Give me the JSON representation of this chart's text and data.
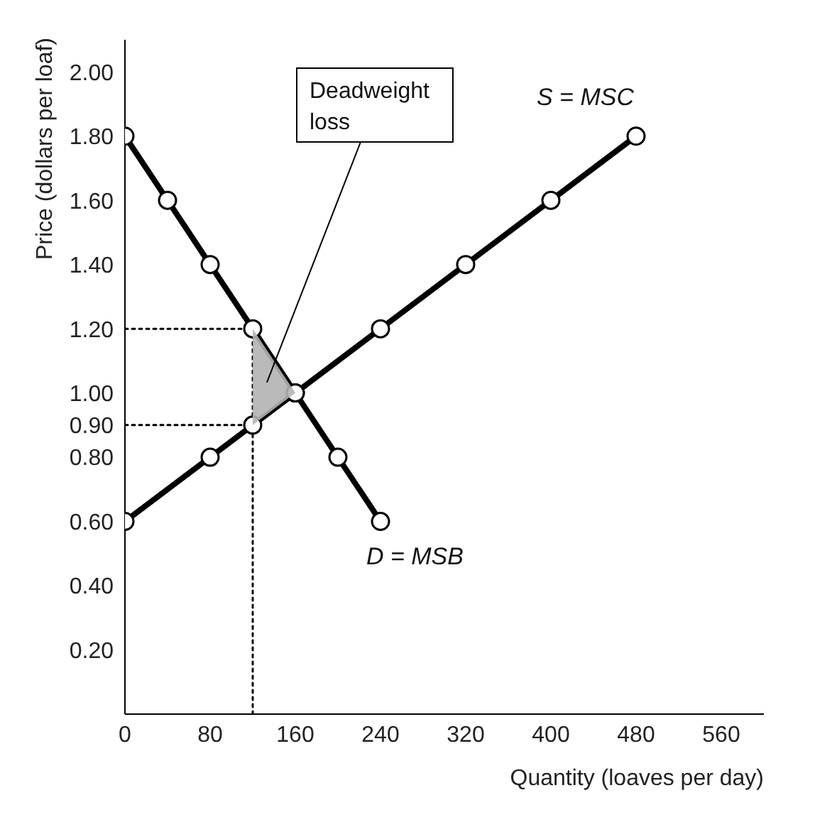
{
  "chart_data": {
    "type": "line",
    "xlabel": "Quantity (loaves per day)",
    "ylabel": "Price (dollars per loaf)",
    "xlim": [
      0,
      600
    ],
    "xticks": [
      0,
      80,
      160,
      240,
      320,
      400,
      480,
      560
    ],
    "ylim": [
      0,
      2.1
    ],
    "yticks": [
      {
        "value": 0.2,
        "label": "0.20"
      },
      {
        "value": 0.4,
        "label": "0.40"
      },
      {
        "value": 0.6,
        "label": "0.60"
      },
      {
        "value": 0.8,
        "label": "0.80"
      },
      {
        "value": 0.9,
        "label": "0.90"
      },
      {
        "value": 1.0,
        "label": "1.00"
      },
      {
        "value": 1.2,
        "label": "1.20"
      },
      {
        "value": 1.4,
        "label": "1.40"
      },
      {
        "value": 1.6,
        "label": "1.60"
      },
      {
        "value": 1.8,
        "label": "1.80"
      },
      {
        "value": 2.0,
        "label": "2.00"
      }
    ],
    "series": [
      {
        "color": "#000000",
        "line_style": "dotted",
        "x": [
          0,
          120
        ],
        "values": [
          1.2,
          1.2
        ]
      },
      {
        "color": "#000000",
        "line_style": "dotted",
        "x": [
          0,
          120
        ],
        "values": [
          0.9,
          0.9
        ]
      },
      {
        "color": "#000000",
        "line_style": "dotted",
        "x": [
          120,
          120
        ],
        "values": [
          0,
          1.2
        ]
      },
      {
        "name": "S = MSC",
        "color": "#000000",
        "line_style": "solid",
        "marker": "circle",
        "x": [
          0,
          80,
          120,
          160,
          240,
          320,
          400,
          480
        ],
        "values": [
          0.6,
          0.8,
          0.9,
          1.0,
          1.2,
          1.4,
          1.6,
          1.8
        ]
      },
      {
        "name": "D = MSB",
        "color": "#000000",
        "line_style": "solid",
        "marker": "circle",
        "x": [
          0,
          40,
          80,
          120,
          160,
          200,
          240
        ],
        "values": [
          1.8,
          1.6,
          1.4,
          1.2,
          1.0,
          0.8,
          0.6
        ]
      }
    ],
    "annotations": [
      "Deadweight loss"
    ]
  }
}
